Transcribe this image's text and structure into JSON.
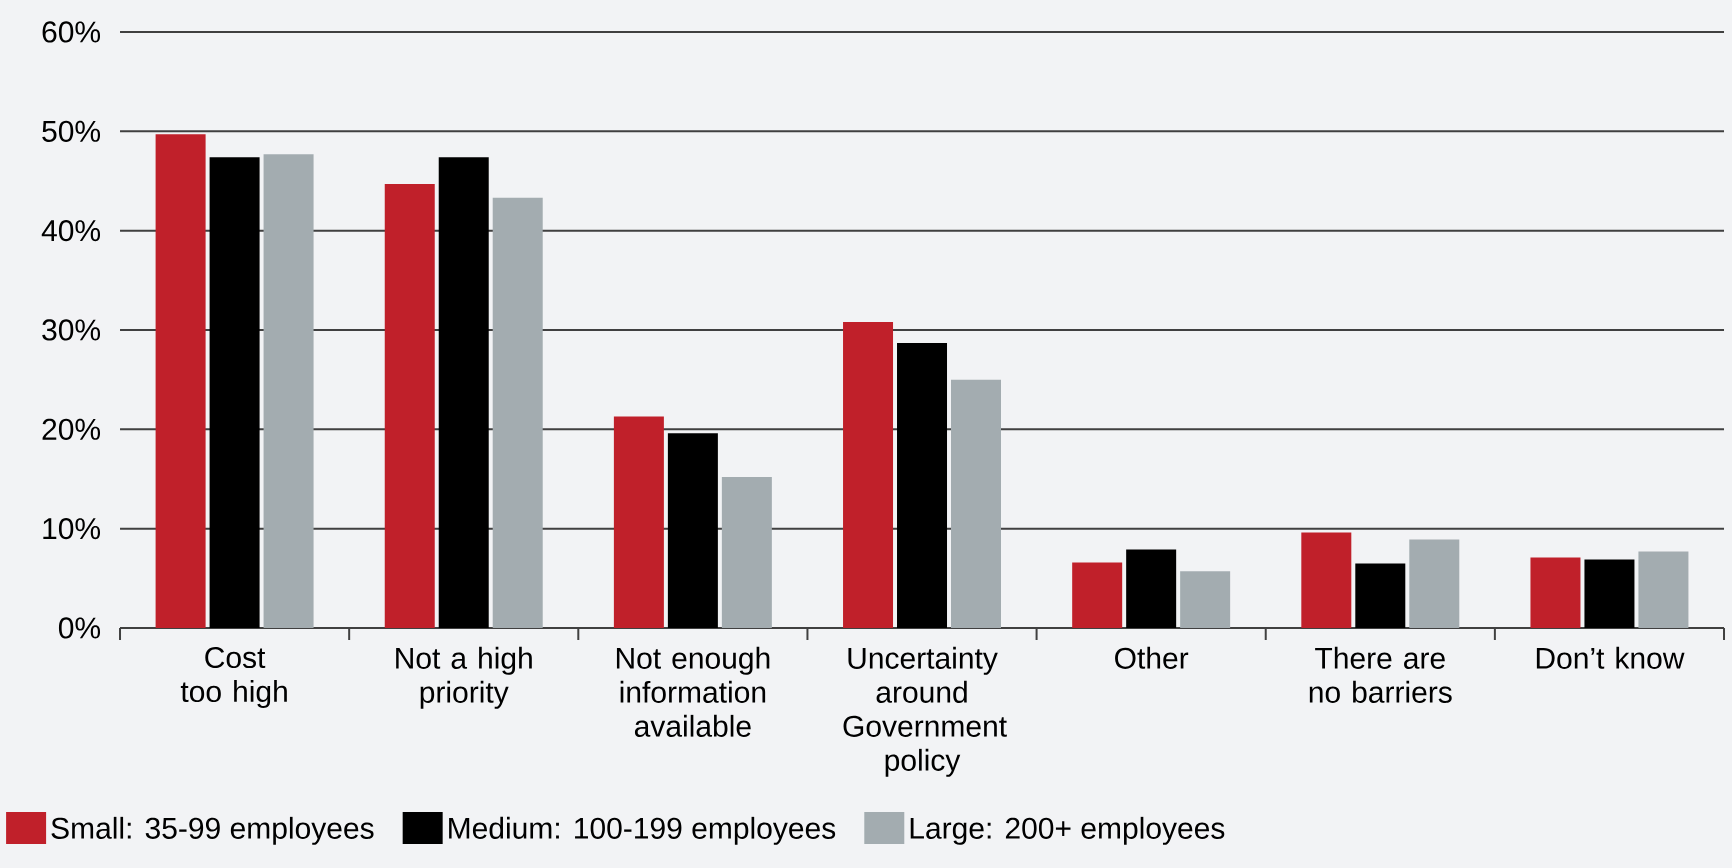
{
  "chart_data": {
    "type": "bar",
    "categories": [
      "Cost too high",
      "Not a high priority",
      "Not enough information available",
      "Uncertainty around Government policy",
      "Other",
      "There are no barriers",
      "Don’t know"
    ],
    "series": [
      {
        "name": "Small: 35-99 employees",
        "color": "#c0202a",
        "values": [
          49.7,
          44.7,
          21.3,
          30.8,
          6.6,
          9.6,
          7.1
        ]
      },
      {
        "name": "Medium: 100-199 employees",
        "color": "#000000",
        "values": [
          47.4,
          47.4,
          19.6,
          28.7,
          7.9,
          6.5,
          6.9
        ]
      },
      {
        "name": "Large: 200+ employees",
        "color": "#a3acb0",
        "values": [
          47.7,
          43.3,
          15.2,
          25.0,
          5.7,
          8.9,
          7.7
        ]
      }
    ],
    "ylim": [
      0,
      60
    ],
    "yticks": [
      {
        "value": 0,
        "label": "0%"
      },
      {
        "value": 10,
        "label": "10%"
      },
      {
        "value": 20,
        "label": "20%"
      },
      {
        "value": 30,
        "label": "30%"
      },
      {
        "value": 40,
        "label": "40%"
      },
      {
        "value": 50,
        "label": "50%"
      },
      {
        "value": 60,
        "label": "60%"
      }
    ],
    "grid": "y",
    "legend": "bottom"
  }
}
